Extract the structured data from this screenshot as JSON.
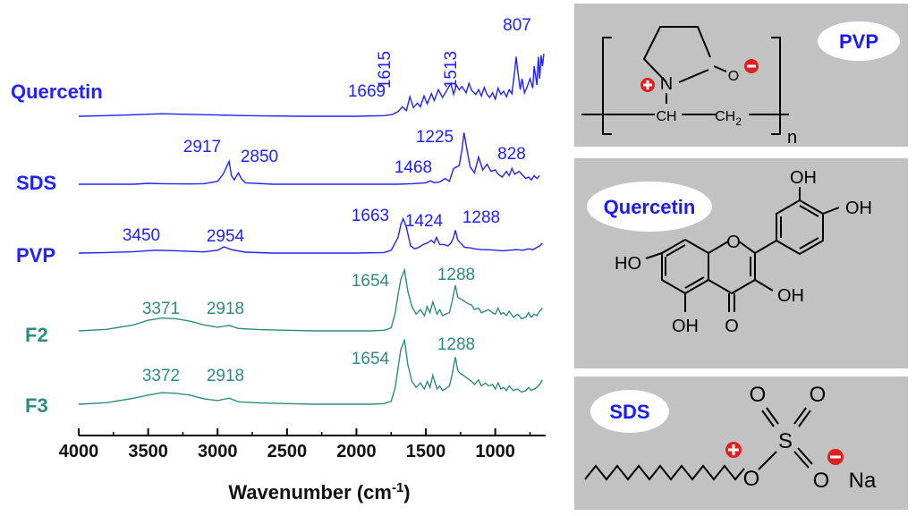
{
  "chart_data": {
    "type": "line",
    "xlabel": "Wavenumber (cm",
    "xlabel_superscript": "-1",
    "xlabel_suffix": ")",
    "xlim": [
      4000,
      650
    ],
    "x_reversed": true,
    "ticks": [
      "4000",
      "3500",
      "3000",
      "2500",
      "2000",
      "1500",
      "1000"
    ],
    "tick_values": [
      4000,
      3500,
      3000,
      2500,
      2000,
      1500,
      1000
    ],
    "y_units": "offset transmittance (arbitrary)",
    "series": [
      {
        "name": "Quercetin",
        "color": "#2222ff",
        "x": [
          4000,
          3800,
          3600,
          3400,
          3200,
          3000,
          2800,
          2600,
          2400,
          2200,
          2000,
          1800,
          1740,
          1700,
          1669,
          1640,
          1615,
          1590,
          1560,
          1540,
          1513,
          1490,
          1460,
          1440,
          1410,
          1380,
          1360,
          1320,
          1300,
          1280,
          1260,
          1240,
          1210,
          1190,
          1170,
          1140,
          1120,
          1100,
          1080,
          1060,
          1040,
          1020,
          1000,
          980,
          960,
          940,
          920,
          900,
          880,
          860,
          850,
          840,
          820,
          807,
          790,
          770,
          750,
          730,
          720,
          700,
          690,
          680,
          670,
          660,
          650
        ],
        "y": [
          0.0,
          0.02,
          0.05,
          0.08,
          0.06,
          0.04,
          0.02,
          0.01,
          0.0,
          0.0,
          0.0,
          0.02,
          0.06,
          0.15,
          0.3,
          0.18,
          0.62,
          0.28,
          0.42,
          0.3,
          0.65,
          0.4,
          0.72,
          0.5,
          0.85,
          0.6,
          0.75,
          1.05,
          0.7,
          1.0,
          0.85,
          0.95,
          0.75,
          1.05,
          0.82,
          0.7,
          0.85,
          0.65,
          0.92,
          0.7,
          0.6,
          0.75,
          0.55,
          0.9,
          0.7,
          0.8,
          0.62,
          0.85,
          0.72,
          1.45,
          1.9,
          1.5,
          0.85,
          1.2,
          0.75,
          0.95,
          1.2,
          0.9,
          1.6,
          1.0,
          1.9,
          1.2,
          1.95,
          1.6,
          2.0
        ]
      },
      {
        "name": "SDS",
        "color": "#2222ff",
        "x": [
          4000,
          3800,
          3600,
          3500,
          3400,
          3200,
          3100,
          3000,
          2960,
          2940,
          2917,
          2900,
          2880,
          2850,
          2830,
          2800,
          2600,
          2400,
          2200,
          2000,
          1800,
          1700,
          1600,
          1500,
          1468,
          1440,
          1400,
          1360,
          1330,
          1300,
          1260,
          1240,
          1225,
          1200,
          1180,
          1150,
          1120,
          1090,
          1060,
          1030,
          1000,
          980,
          950,
          920,
          900,
          880,
          860,
          828,
          800,
          780,
          760,
          740,
          720,
          700,
          680
        ],
        "y": [
          0.0,
          0.0,
          0.0,
          0.03,
          0.02,
          0.01,
          0.02,
          0.1,
          0.35,
          0.55,
          0.8,
          0.3,
          0.15,
          0.4,
          0.2,
          0.05,
          0.0,
          0.0,
          0.0,
          0.0,
          0.0,
          0.0,
          0.02,
          0.05,
          0.12,
          0.05,
          0.08,
          0.2,
          0.1,
          0.55,
          0.65,
          1.2,
          1.8,
          1.1,
          0.6,
          0.4,
          0.95,
          0.5,
          0.7,
          0.45,
          0.5,
          0.35,
          0.25,
          0.45,
          0.3,
          0.55,
          0.35,
          0.45,
          0.3,
          0.2,
          0.25,
          0.15,
          0.3,
          0.2,
          0.3
        ]
      },
      {
        "name": "PVP",
        "color": "#2222ff",
        "x": [
          4000,
          3800,
          3600,
          3450,
          3300,
          3100,
          3000,
          2954,
          2900,
          2800,
          2600,
          2400,
          2200,
          2000,
          1800,
          1750,
          1700,
          1680,
          1663,
          1640,
          1610,
          1580,
          1550,
          1520,
          1490,
          1460,
          1440,
          1424,
          1400,
          1370,
          1340,
          1320,
          1300,
          1288,
          1270,
          1250,
          1220,
          1180,
          1150,
          1100,
          1050,
          1000,
          950,
          900,
          850,
          800,
          760,
          730,
          700,
          680,
          660
        ],
        "y": [
          0.0,
          0.02,
          0.05,
          0.1,
          0.08,
          0.04,
          0.1,
          0.22,
          0.12,
          0.03,
          0.0,
          0.0,
          0.0,
          0.0,
          0.02,
          0.1,
          0.55,
          1.0,
          1.2,
          0.9,
          0.25,
          0.15,
          0.2,
          0.3,
          0.35,
          0.45,
          0.35,
          0.55,
          0.3,
          0.3,
          0.25,
          0.35,
          0.55,
          0.8,
          0.45,
          0.35,
          0.2,
          0.18,
          0.15,
          0.12,
          0.12,
          0.1,
          0.08,
          0.1,
          0.12,
          0.1,
          0.15,
          0.12,
          0.2,
          0.25,
          0.35
        ]
      },
      {
        "name": "F2",
        "color": "#2e8b84",
        "x": [
          4000,
          3800,
          3600,
          3500,
          3400,
          3300,
          3200,
          3100,
          3000,
          2918,
          2850,
          2700,
          2500,
          2300,
          2100,
          2000,
          1900,
          1800,
          1750,
          1720,
          1700,
          1680,
          1654,
          1630,
          1600,
          1570,
          1540,
          1510,
          1490,
          1470,
          1450,
          1420,
          1400,
          1380,
          1360,
          1330,
          1310,
          1288,
          1270,
          1250,
          1230,
          1200,
          1170,
          1150,
          1120,
          1100,
          1070,
          1050,
          1020,
          1000,
          980,
          960,
          940,
          920,
          900,
          870,
          840,
          810,
          780,
          760,
          740,
          720,
          700,
          680,
          660
        ],
        "y": [
          0.0,
          0.05,
          0.2,
          0.35,
          0.42,
          0.4,
          0.32,
          0.2,
          0.12,
          0.18,
          0.08,
          0.04,
          0.02,
          0.0,
          0.0,
          0.0,
          0.0,
          0.02,
          0.1,
          0.6,
          1.2,
          1.7,
          2.0,
          1.3,
          0.8,
          0.55,
          0.7,
          0.5,
          0.8,
          0.6,
          0.95,
          0.55,
          0.7,
          0.5,
          0.55,
          0.6,
          1.0,
          1.5,
          1.1,
          1.05,
          1.0,
          0.9,
          0.85,
          0.7,
          0.75,
          0.6,
          0.65,
          0.7,
          0.6,
          0.55,
          0.75,
          0.55,
          0.6,
          0.5,
          0.65,
          0.45,
          0.55,
          0.4,
          0.45,
          0.6,
          0.45,
          0.55,
          0.5,
          0.65,
          0.75
        ]
      },
      {
        "name": "F3",
        "color": "#2e8b84",
        "x": [
          4000,
          3800,
          3600,
          3500,
          3400,
          3300,
          3200,
          3100,
          3000,
          2918,
          2850,
          2700,
          2500,
          2300,
          2100,
          2000,
          1900,
          1800,
          1750,
          1720,
          1700,
          1680,
          1654,
          1630,
          1600,
          1570,
          1540,
          1510,
          1490,
          1470,
          1450,
          1420,
          1400,
          1380,
          1360,
          1330,
          1310,
          1288,
          1270,
          1250,
          1230,
          1200,
          1170,
          1150,
          1120,
          1100,
          1070,
          1050,
          1020,
          1000,
          980,
          960,
          940,
          920,
          900,
          870,
          840,
          810,
          780,
          760,
          740,
          720,
          700,
          680,
          660
        ],
        "y": [
          0.0,
          0.05,
          0.2,
          0.3,
          0.38,
          0.36,
          0.3,
          0.18,
          0.12,
          0.2,
          0.08,
          0.04,
          0.02,
          0.0,
          0.0,
          0.0,
          0.0,
          0.02,
          0.1,
          0.55,
          1.2,
          1.8,
          2.1,
          1.3,
          0.75,
          0.55,
          0.7,
          0.5,
          0.75,
          0.55,
          0.95,
          0.5,
          0.6,
          0.45,
          0.5,
          0.6,
          1.0,
          1.55,
          1.1,
          1.0,
          0.95,
          0.85,
          0.75,
          0.65,
          0.8,
          0.6,
          0.7,
          0.6,
          0.65,
          0.5,
          0.7,
          0.5,
          0.55,
          0.45,
          0.6,
          0.45,
          0.5,
          0.4,
          0.45,
          0.55,
          0.45,
          0.5,
          0.55,
          0.65,
          0.8
        ]
      }
    ],
    "peak_labels": [
      {
        "series": "Quercetin",
        "text": "1669",
        "x": 1669,
        "color": "#2222ff"
      },
      {
        "series": "Quercetin",
        "text": "1615",
        "x": 1615,
        "color": "#2222ff"
      },
      {
        "series": "Quercetin",
        "text": "1513",
        "x": 1513,
        "color": "#2222ff"
      },
      {
        "series": "Quercetin",
        "text": "807",
        "x": 807,
        "color": "#2222ff"
      },
      {
        "series": "SDS",
        "text": "2917",
        "x": 2917,
        "color": "#2222ff"
      },
      {
        "series": "SDS",
        "text": "2850",
        "x": 2850,
        "color": "#2222ff"
      },
      {
        "series": "SDS",
        "text": "1468",
        "x": 1468,
        "color": "#2222ff"
      },
      {
        "series": "SDS",
        "text": "1225",
        "x": 1225,
        "color": "#2222ff"
      },
      {
        "series": "SDS",
        "text": "828",
        "x": 828,
        "color": "#2222ff"
      },
      {
        "series": "PVP",
        "text": "3450",
        "x": 3450,
        "color": "#2222ff"
      },
      {
        "series": "PVP",
        "text": "2954",
        "x": 2954,
        "color": "#2222ff"
      },
      {
        "series": "PVP",
        "text": "1663",
        "x": 1663,
        "color": "#2222ff"
      },
      {
        "series": "PVP",
        "text": "1424",
        "x": 1424,
        "color": "#2222ff"
      },
      {
        "series": "PVP",
        "text": "1288",
        "x": 1288,
        "color": "#2222ff"
      },
      {
        "series": "F2",
        "text": "3371",
        "x": 3371,
        "color": "#2e8b84"
      },
      {
        "series": "F2",
        "text": "2918",
        "x": 2918,
        "color": "#2e8b84"
      },
      {
        "series": "F2",
        "text": "1654",
        "x": 1654,
        "color": "#2e8b84"
      },
      {
        "series": "F2",
        "text": "1288",
        "x": 1288,
        "color": "#2e8b84"
      },
      {
        "series": "F3",
        "text": "3372",
        "x": 3372,
        "color": "#2e8b84"
      },
      {
        "series": "F3",
        "text": "2918",
        "x": 2918,
        "color": "#2e8b84"
      },
      {
        "series": "F3",
        "text": "1654",
        "x": 1654,
        "color": "#2e8b84"
      },
      {
        "series": "F3",
        "text": "1288",
        "x": 1288,
        "color": "#2e8b84"
      }
    ]
  },
  "structures": {
    "pvp": {
      "label": "PVP",
      "atom_N": "N",
      "atom_O": "O",
      "ch": "CH",
      "ch2": "CH",
      "ch2_sub": "2",
      "repeat": "n",
      "charge_plus": "+",
      "charge_minus": "−",
      "color_label": "#1a1aff",
      "color_charge": "#e02020"
    },
    "quercetin": {
      "label": "Quercetin",
      "oh_top1": "OH",
      "oh_top2": "OH",
      "ho_left": "HO",
      "oh_right": "OH",
      "oh_bottom": "OH",
      "atom_O_ring": "O",
      "atom_O_keto": "O"
    },
    "sds": {
      "label": "SDS",
      "atom_O_top1": "O",
      "atom_O_top2": "O",
      "atom_S": "S",
      "atom_O_left": "O",
      "atom_O_right": "O",
      "na": "Na",
      "charge_plus": "+",
      "charge_minus": "−"
    }
  }
}
